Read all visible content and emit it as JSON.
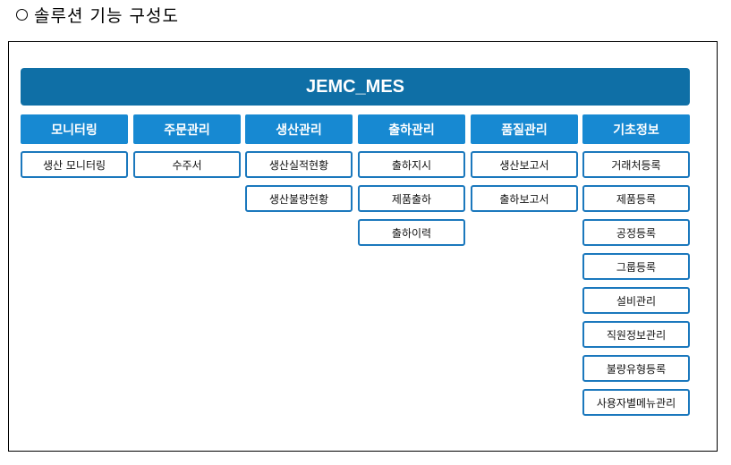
{
  "heading": "솔루션 기능 구성도",
  "system_name": "JEMC_MES",
  "categories": [
    {
      "label": "모니터링",
      "items": [
        "생산 모니터링"
      ]
    },
    {
      "label": "주문관리",
      "items": [
        "수주서"
      ]
    },
    {
      "label": "생산관리",
      "items": [
        "생산실적현황",
        "생산불량현황"
      ]
    },
    {
      "label": "출하관리",
      "items": [
        "출하지시",
        "제품출하",
        "출하이력"
      ]
    },
    {
      "label": "품질관리",
      "items": [
        "생산보고서",
        "출하보고서"
      ]
    },
    {
      "label": "기초정보",
      "items": [
        "거래처등록",
        "제품등록",
        "공정등록",
        "그룹등록",
        "설비관리",
        "직원정보관리",
        "불량유형등록",
        "사용자별메뉴관리"
      ]
    }
  ],
  "colors": {
    "banner": "#0f6fa6",
    "category": "#1789d2",
    "item_border": "#1b78bd"
  }
}
